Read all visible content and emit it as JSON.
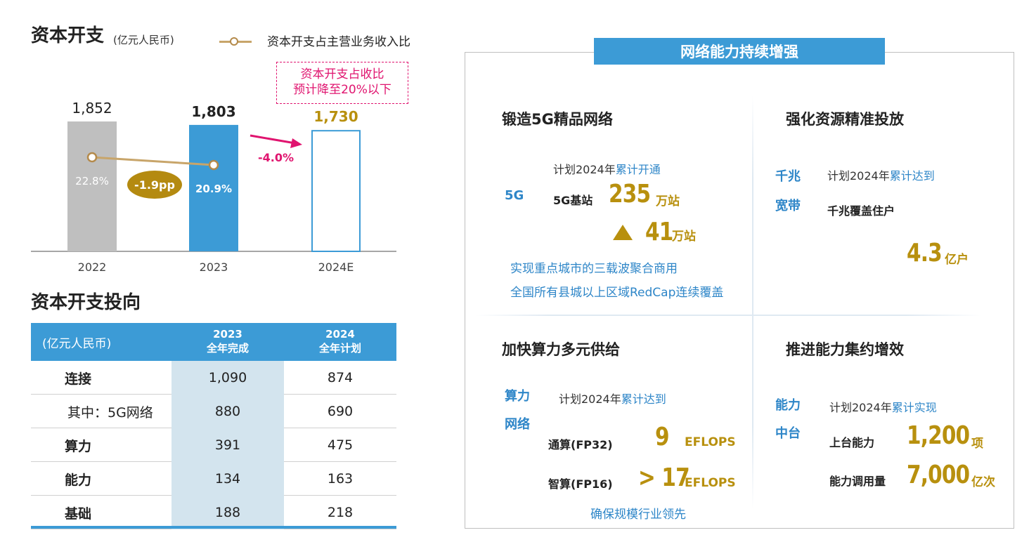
{
  "capex": {
    "title": "资本开支",
    "unit": "(亿元人民币)",
    "legend_label": "资本开支占主营业务收入比",
    "callout_line1": "资本开支占收比",
    "callout_line2": "预计降至20%以下",
    "pp_change": "-1.9pp",
    "growth": "-4.0%"
  },
  "chart_data": {
    "type": "bar",
    "categories": [
      "2022",
      "2023",
      "2024E"
    ],
    "values": [
      1852,
      1803,
      1730
    ],
    "value_labels": [
      "1,852",
      "1,803",
      "1,730"
    ],
    "ratio_series": {
      "name": "资本开支占主营业务收入比",
      "values": [
        22.8,
        20.9
      ],
      "labels": [
        "22.8%",
        "20.9%"
      ]
    },
    "ylim": [
      0,
      2000
    ],
    "colors": {
      "2022": "#BFBFBF",
      "2023": "#3C9BD6",
      "2024E": "#3C9BD6",
      "ratio_line": "#C8A56A",
      "highlight": "#E0146F",
      "pp": "#B48A10",
      "forecast_label": "#B8900E"
    }
  },
  "direction": {
    "title": "资本开支投向",
    "header": {
      "unit": "(亿元人民币)",
      "col2_line1": "2023",
      "col2_line2": "全年完成",
      "col3_line1": "2024",
      "col3_line2": "全年计划"
    },
    "rows": [
      {
        "label": "连接",
        "v2023": "1,090",
        "v2024": "874",
        "bold": true
      },
      {
        "label": "其中：5G网络",
        "v2023": "880",
        "v2024": "690",
        "bold": false
      },
      {
        "label": "算力",
        "v2023": "391",
        "v2024": "475",
        "bold": true
      },
      {
        "label": "能力",
        "v2023": "134",
        "v2024": "163",
        "bold": true
      },
      {
        "label": "基础",
        "v2023": "188",
        "v2024": "218",
        "bold": true
      }
    ]
  },
  "network": {
    "banner": "网络能力持续增强",
    "q1": {
      "title": "锻造5G精品网络",
      "tag": "5G",
      "plan_prefix": "计划2024年",
      "plan_hl": "累计开通",
      "item": "5G基站",
      "num": "235",
      "unit": "万站",
      "inc_num": "41",
      "inc_unit": "万站",
      "line1": "实现重点城市的三载波聚合商用",
      "line2": "全国所有县城以上区域RedCap连续覆盖"
    },
    "q2": {
      "title": "强化资源精准投放",
      "tag1": "千兆",
      "tag2": "宽带",
      "plan_prefix": "计划2024年",
      "plan_hl": "累计达到",
      "item": "千兆覆盖住户",
      "num": "4.3",
      "unit": "亿户"
    },
    "q3": {
      "title": "加快算力多元供给",
      "tag1": "算力",
      "tag2": "网络",
      "plan_prefix": "计划2024年",
      "plan_hl": "累计达到",
      "item1": "通算(FP32)",
      "num1": "9",
      "unit1": "EFLOPS",
      "item2": "智算(FP16)",
      "num2": "> 17",
      "unit2": "EFLOPS",
      "line": "确保规模行业领先"
    },
    "q4": {
      "title": "推进能力集约增效",
      "tag1": "能力",
      "tag2": "中台",
      "plan_prefix": "计划2024年",
      "plan_hl": "累计实现",
      "item1": "上台能力",
      "num1": "1,200",
      "unit1": "项",
      "item2": "能力调用量",
      "num2": "7,000",
      "unit2": "亿次"
    }
  }
}
